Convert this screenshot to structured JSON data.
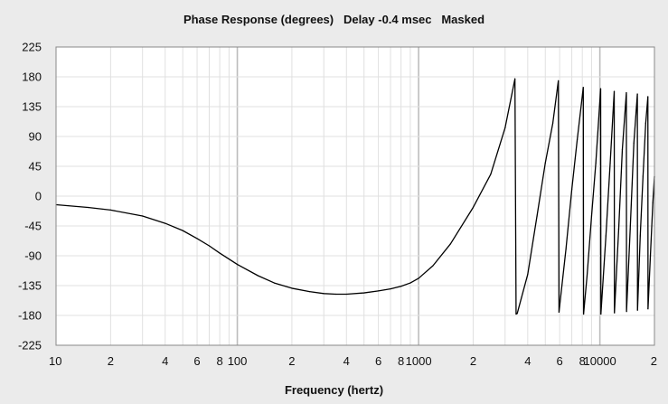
{
  "chart_data": {
    "type": "line",
    "title": "Phase Response (degrees)   Delay -0.4 msec   Masked",
    "xlabel": "Frequency (hertz)",
    "ylabel": "",
    "x_scale": "log",
    "xlim": [
      10,
      20000
    ],
    "ylim": [
      -225,
      225
    ],
    "y_ticks": [
      225,
      180,
      135,
      90,
      45,
      0,
      -45,
      -90,
      -135,
      -180,
      -225
    ],
    "x_ticks": [
      {
        "value": 10,
        "label": "10"
      },
      {
        "value": 20,
        "label": "2"
      },
      {
        "value": 40,
        "label": "4"
      },
      {
        "value": 60,
        "label": "6"
      },
      {
        "value": 80,
        "label": "8"
      },
      {
        "value": 100,
        "label": "100"
      },
      {
        "value": 200,
        "label": "2"
      },
      {
        "value": 400,
        "label": "4"
      },
      {
        "value": 600,
        "label": "6"
      },
      {
        "value": 800,
        "label": "8"
      },
      {
        "value": 1000,
        "label": "1000"
      },
      {
        "value": 2000,
        "label": "2"
      },
      {
        "value": 4000,
        "label": "4"
      },
      {
        "value": 6000,
        "label": "6"
      },
      {
        "value": 8000,
        "label": "8"
      },
      {
        "value": 10000,
        "label": "10000"
      },
      {
        "value": 20000,
        "label": "2"
      }
    ],
    "grid": true,
    "series": [
      {
        "color": "#000000",
        "points": [
          [
            10,
            -13
          ],
          [
            15,
            -17
          ],
          [
            20,
            -21
          ],
          [
            30,
            -30
          ],
          [
            40,
            -41
          ],
          [
            50,
            -52
          ],
          [
            60,
            -64
          ],
          [
            70,
            -75
          ],
          [
            80,
            -86
          ],
          [
            100,
            -103
          ],
          [
            130,
            -120
          ],
          [
            160,
            -131
          ],
          [
            200,
            -139
          ],
          [
            250,
            -144
          ],
          [
            300,
            -147
          ],
          [
            350,
            -148
          ],
          [
            400,
            -148
          ],
          [
            500,
            -146
          ],
          [
            600,
            -143
          ],
          [
            700,
            -140
          ],
          [
            800,
            -136
          ],
          [
            900,
            -131
          ],
          [
            1000,
            -124
          ],
          [
            1200,
            -105
          ],
          [
            1500,
            -72
          ],
          [
            2000,
            -17
          ],
          [
            2500,
            33
          ],
          [
            3000,
            103
          ],
          [
            3400,
            177
          ],
          [
            3450,
            -178
          ],
          [
            3500,
            -177
          ],
          [
            4000,
            -118
          ],
          [
            4500,
            -30
          ],
          [
            5000,
            50
          ],
          [
            5500,
            110
          ],
          [
            5900,
            174
          ],
          [
            5950,
            -175
          ],
          [
            6500,
            -80
          ],
          [
            7000,
            10
          ],
          [
            7500,
            85
          ],
          [
            8100,
            164
          ],
          [
            8130,
            -178
          ],
          [
            8500,
            -120
          ],
          [
            9000,
            -30
          ],
          [
            9500,
            50
          ],
          [
            10100,
            162
          ],
          [
            10130,
            -178
          ],
          [
            10800,
            -60
          ],
          [
            11400,
            50
          ],
          [
            12000,
            158
          ],
          [
            12030,
            -176
          ],
          [
            12700,
            -50
          ],
          [
            13300,
            70
          ],
          [
            14000,
            156
          ],
          [
            14030,
            -174
          ],
          [
            14700,
            -50
          ],
          [
            15400,
            80
          ],
          [
            16100,
            154
          ],
          [
            16130,
            -172
          ],
          [
            16700,
            -60
          ],
          [
            17300,
            30
          ],
          [
            17900,
            110
          ],
          [
            18400,
            150
          ],
          [
            18430,
            -170
          ],
          [
            19000,
            -90
          ],
          [
            19600,
            -10
          ],
          [
            20000,
            30
          ]
        ]
      }
    ]
  }
}
